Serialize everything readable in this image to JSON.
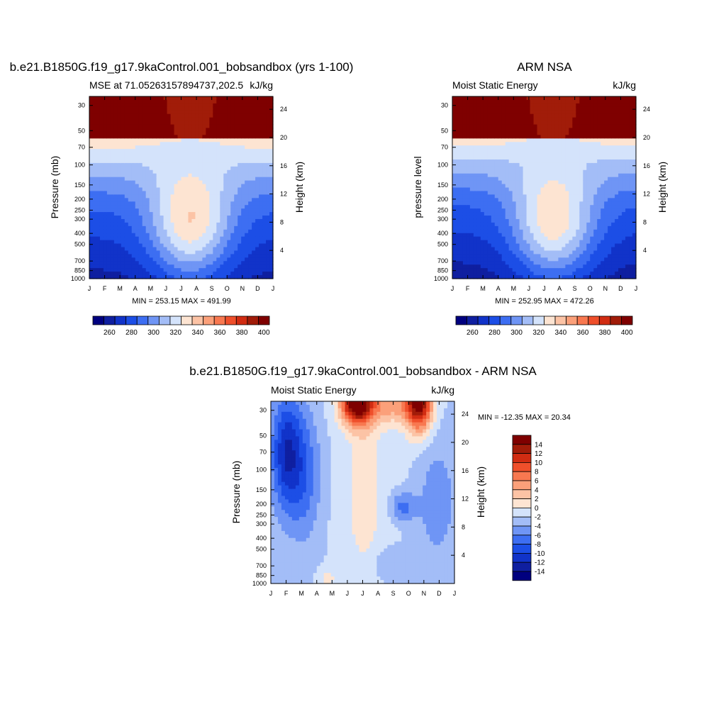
{
  "chart_data": [
    {
      "type": "contour",
      "panel": "model",
      "title": "b.e21.B1850G.f19_g17.9kaControl.001_bobsandbox (yrs 1-100)",
      "left_label": "MSE at 71.05263157894737,202.5",
      "right_label": "kJ/kg",
      "ylabel": "Pressure (mb)",
      "y2label": "Height (km)",
      "months": [
        "J",
        "F",
        "M",
        "A",
        "M",
        "J",
        "J",
        "A",
        "S",
        "O",
        "N",
        "D",
        "J"
      ],
      "pressure_ticks": [
        "30",
        "50",
        "70",
        "100",
        "150",
        "200",
        "250",
        "300",
        "400",
        "500",
        "700",
        "850",
        "1000"
      ],
      "pressure_values": [
        30,
        50,
        70,
        100,
        150,
        200,
        250,
        300,
        400,
        500,
        700,
        850,
        1000
      ],
      "height_ticks": [
        "24",
        "20",
        "16",
        "12",
        "8",
        "4"
      ],
      "height_values": [
        24,
        20,
        16,
        12,
        8,
        4
      ],
      "stats": "MIN = 253.15 MAX = 491.99",
      "colorbar_labels": [
        "260",
        "280",
        "300",
        "320",
        "340",
        "360",
        "380",
        "400"
      ],
      "levels": [
        255,
        260,
        265,
        270,
        275,
        280,
        285,
        290,
        295,
        300,
        305,
        310,
        315,
        320,
        325,
        330,
        335,
        340,
        345,
        350,
        355,
        360,
        365,
        370,
        375,
        380,
        385,
        390,
        395,
        400
      ]
    },
    {
      "type": "contour",
      "panel": "obs",
      "title": "ARM NSA",
      "left_label": "Moist Static Energy",
      "right_label": "kJ/kg",
      "ylabel": "pressure level",
      "y2label": "Height (km)",
      "months": [
        "J",
        "F",
        "M",
        "A",
        "M",
        "J",
        "J",
        "A",
        "S",
        "O",
        "N",
        "D",
        "J"
      ],
      "pressure_ticks": [
        "30",
        "50",
        "70",
        "100",
        "150",
        "200",
        "250",
        "300",
        "400",
        "500",
        "700",
        "850",
        "1000"
      ],
      "pressure_values": [
        30,
        50,
        70,
        100,
        150,
        200,
        250,
        300,
        400,
        500,
        700,
        850,
        1000
      ],
      "height_ticks": [
        "24",
        "20",
        "16",
        "12",
        "8",
        "4"
      ],
      "height_values": [
        24,
        20,
        16,
        12,
        8,
        4
      ],
      "stats": "MIN = 252.95 MAX = 472.26",
      "colorbar_labels": [
        "260",
        "280",
        "300",
        "320",
        "340",
        "360",
        "380",
        "400"
      ],
      "levels": [
        255,
        260,
        265,
        270,
        275,
        280,
        285,
        290,
        295,
        300,
        305,
        310,
        315,
        320,
        325,
        330,
        335,
        340,
        345,
        350,
        355,
        360,
        365,
        370,
        375,
        380,
        385,
        390,
        395,
        400
      ]
    },
    {
      "type": "contour",
      "panel": "diff",
      "title": "b.e21.B1850G.f19_g17.9kaControl.001_bobsandbox - ARM NSA",
      "left_label": "Moist Static Energy",
      "right_label": "kJ/kg",
      "ylabel": "Pressure (mb)",
      "y2label": "Height (km)",
      "months": [
        "J",
        "F",
        "M",
        "A",
        "M",
        "J",
        "J",
        "A",
        "S",
        "O",
        "N",
        "D",
        "J"
      ],
      "pressure_ticks": [
        "30",
        "50",
        "70",
        "100",
        "150",
        "200",
        "250",
        "300",
        "400",
        "500",
        "700",
        "850",
        "1000"
      ],
      "pressure_values": [
        30,
        50,
        70,
        100,
        150,
        200,
        250,
        300,
        400,
        500,
        700,
        850,
        1000
      ],
      "height_ticks": [
        "24",
        "20",
        "16",
        "12",
        "8",
        "4"
      ],
      "height_values": [
        24,
        20,
        16,
        12,
        8,
        4
      ],
      "stats": "MIN = -12.35 MAX =  20.34",
      "colorbar_labels": [
        "14",
        "12",
        "10",
        "8",
        "6",
        "4",
        "2",
        "0",
        "-2",
        "-4",
        "-6",
        "-8",
        "-10",
        "-12",
        "-14"
      ],
      "levels": [
        -14,
        -12,
        -10,
        -8,
        -6,
        -4,
        -2,
        0,
        2,
        4,
        6,
        8,
        10,
        12,
        14
      ]
    }
  ],
  "palette": [
    "#00007f",
    "#0f1fa0",
    "#1133c9",
    "#1c4ee6",
    "#3d6ef2",
    "#6f95f5",
    "#a3bdf7",
    "#d4e3fb",
    "#fde4d2",
    "#fcc3a5",
    "#fba07a",
    "#f87850",
    "#ef4f2b",
    "#d12c12",
    "#a11c09",
    "#7f0000"
  ]
}
